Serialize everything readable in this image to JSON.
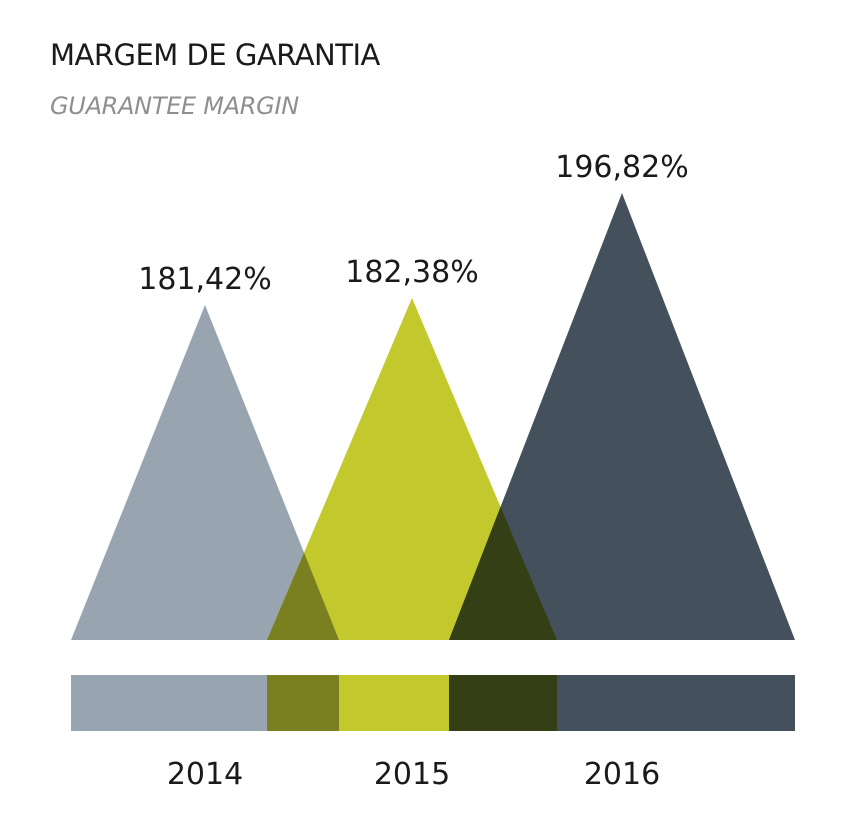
{
  "header": {
    "title": "MARGEM DE GARANTIA",
    "subtitle": "GUARANTEE MARGIN"
  },
  "chart_data": {
    "type": "bar",
    "title": "MARGEM DE GARANTIA",
    "subtitle": "GUARANTEE MARGIN",
    "categories": [
      "2014",
      "2015",
      "2016"
    ],
    "values": [
      181.42,
      182.38,
      196.82
    ],
    "value_labels": [
      "181,42%",
      "182,38%",
      "196,82%"
    ],
    "unit": "%",
    "colors": [
      "#98a4b0",
      "#c3c82d",
      "#44515d"
    ],
    "overlap_colors": [
      "#7a8020",
      "#353f15"
    ],
    "legend": "none",
    "grid": false
  }
}
